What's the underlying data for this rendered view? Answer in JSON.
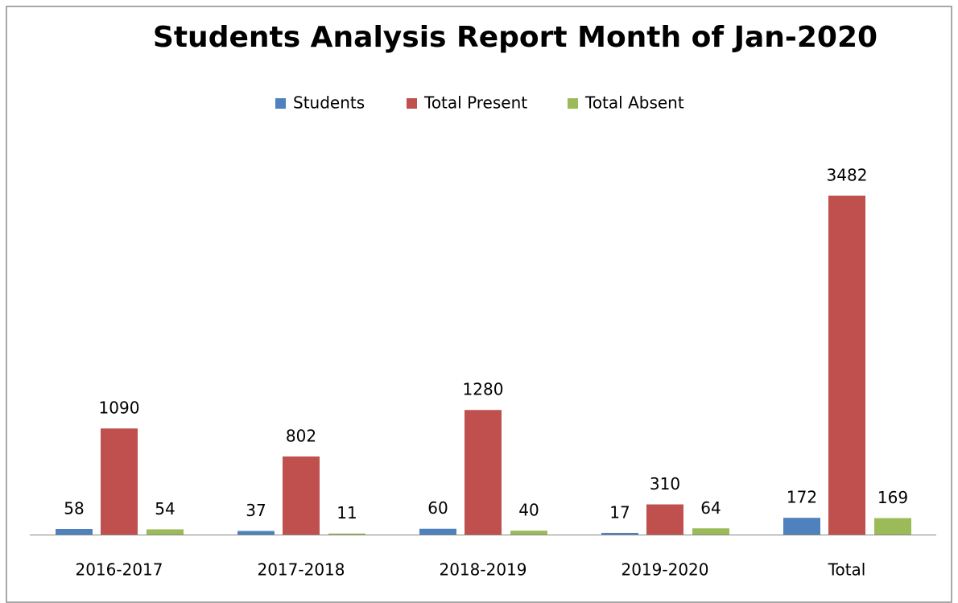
{
  "chart_data": {
    "type": "bar",
    "title": "Students Analysis Report Month of Jan-2020",
    "categories": [
      "2016-2017",
      "2017-2018",
      "2018-2019",
      "2019-2020",
      "Total"
    ],
    "series": [
      {
        "name": "Students",
        "color": "#4f81bd",
        "values": [
          58,
          37,
          60,
          17,
          172
        ]
      },
      {
        "name": "Total Present",
        "color": "#c0504d",
        "values": [
          1090,
          802,
          1280,
          310,
          3482
        ]
      },
      {
        "name": "Total Absent",
        "color": "#9bbb59",
        "values": [
          54,
          11,
          40,
          64,
          169
        ]
      }
    ],
    "legend": "top"
  }
}
